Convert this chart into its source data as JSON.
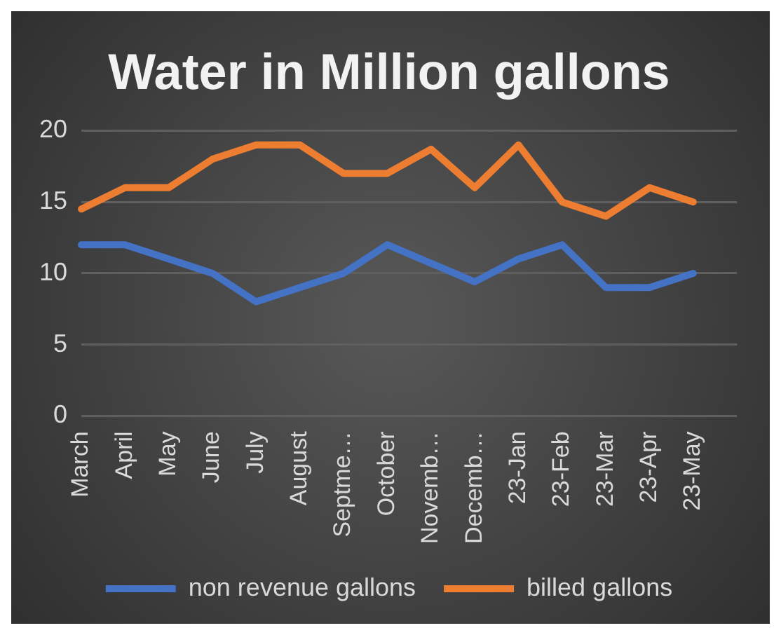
{
  "chart_data": {
    "type": "line",
    "title": "Water in Million gallons",
    "categories": [
      "March",
      "April",
      "May",
      "June",
      "July",
      "August",
      "Septme…",
      "October",
      "Novemb…",
      "Decemb…",
      "23-Jan",
      "23-Feb",
      "23-Mar",
      "23-Apr",
      "23-May",
      null
    ],
    "series": [
      {
        "name": "non revenue gallons",
        "color": "#4472c4",
        "values": [
          12,
          12,
          11,
          10,
          8,
          9,
          10,
          12,
          10.7,
          9.4,
          11,
          12,
          9,
          9,
          10,
          null
        ]
      },
      {
        "name": "billed gallons",
        "color": "#ed7d31",
        "values": [
          14.5,
          16,
          16,
          18,
          19,
          19,
          17,
          17,
          18.7,
          16,
          19,
          15,
          14,
          16,
          15,
          null
        ]
      }
    ],
    "ylim": [
      0,
      20
    ],
    "yticks": [
      0,
      5,
      10,
      15,
      20
    ],
    "grid": "y",
    "legend": "bottom",
    "marker": "none",
    "line_style": "solid"
  }
}
